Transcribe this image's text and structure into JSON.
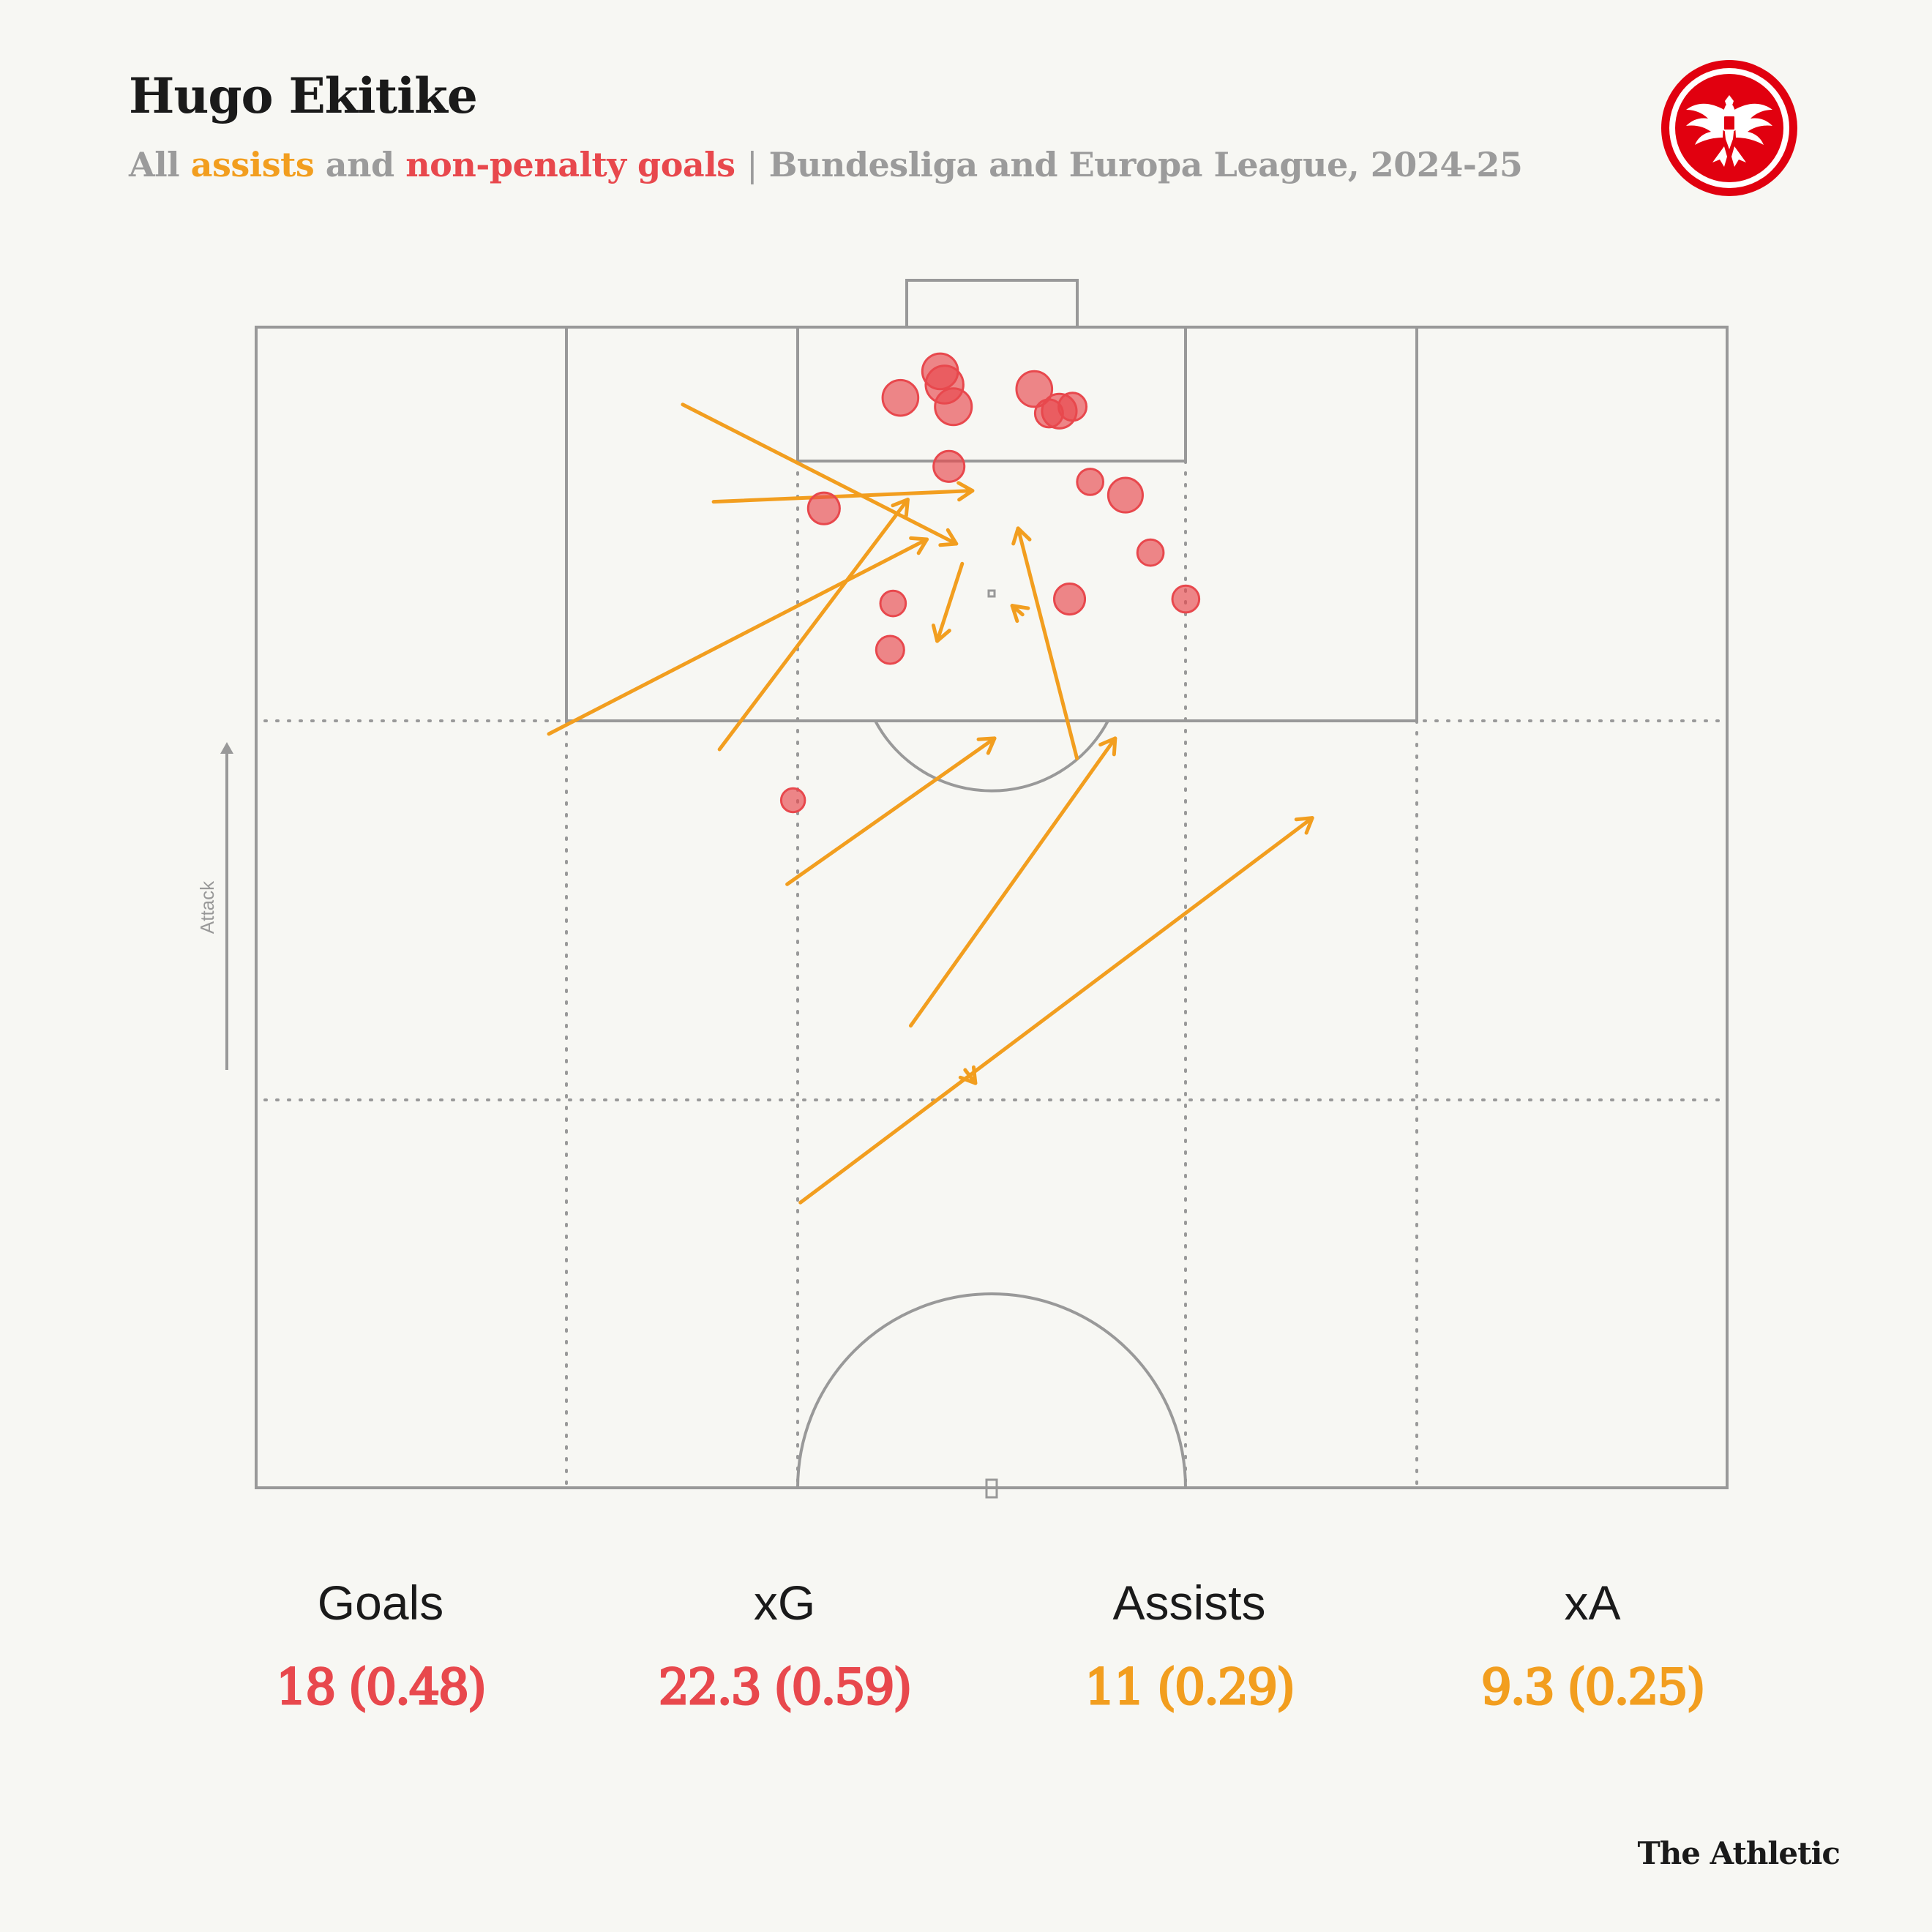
{
  "header": {
    "title": "Hugo Ekitike",
    "subtitle_parts": {
      "all": "All",
      "assists": "assists",
      "and": "and",
      "goals": "non-penalty goals",
      "separator": "|",
      "competition": "Bundesliga and Europa League, 2024-25"
    }
  },
  "colors": {
    "assist": "#f29e1f",
    "goal": "#e8484d",
    "line": "#999999",
    "background": "#f7f7f3",
    "badge_red": "#e1000f"
  },
  "badge": {
    "icon": "eintracht-frankfurt-eagle-crest-icon"
  },
  "pitch": {
    "direction_label": "Attack",
    "direction_icon": "arrow-up-icon"
  },
  "chart_data": {
    "type": "scatter",
    "description_units": "pitch coordinates: x = 0..100 across pitch width (left to right), y = metres from goal line toward halfway line",
    "pitch": {
      "width_m": 68,
      "length_shown_m": 52.5
    },
    "shots_goals": [
      {
        "x": 46.5,
        "y": 2.0,
        "xg_size": 0.55
      },
      {
        "x": 46.8,
        "y": 2.6,
        "xg_size": 0.65
      },
      {
        "x": 43.8,
        "y": 3.2,
        "xg_size": 0.55
      },
      {
        "x": 47.4,
        "y": 3.6,
        "xg_size": 0.6
      },
      {
        "x": 52.9,
        "y": 2.8,
        "xg_size": 0.55
      },
      {
        "x": 54.6,
        "y": 3.8,
        "xg_size": 0.5
      },
      {
        "x": 55.5,
        "y": 3.6,
        "xg_size": 0.25
      },
      {
        "x": 53.9,
        "y": 3.9,
        "xg_size": 0.25
      },
      {
        "x": 47.1,
        "y": 6.3,
        "xg_size": 0.35
      },
      {
        "x": 56.7,
        "y": 7.0,
        "xg_size": 0.2
      },
      {
        "x": 59.1,
        "y": 7.6,
        "xg_size": 0.5
      },
      {
        "x": 38.6,
        "y": 8.2,
        "xg_size": 0.38
      },
      {
        "x": 60.8,
        "y": 10.2,
        "xg_size": 0.2
      },
      {
        "x": 43.3,
        "y": 12.5,
        "xg_size": 0.18
      },
      {
        "x": 55.3,
        "y": 12.3,
        "xg_size": 0.35
      },
      {
        "x": 63.2,
        "y": 12.3,
        "xg_size": 0.22
      },
      {
        "x": 43.1,
        "y": 14.6,
        "xg_size": 0.25
      },
      {
        "x": 36.5,
        "y": 21.4,
        "xg_size": 0.14
      }
    ],
    "assists": [
      {
        "x1": 29.0,
        "y1": 3.5,
        "x2": 47.6,
        "y2": 9.8
      },
      {
        "x1": 31.1,
        "y1": 7.9,
        "x2": 48.7,
        "y2": 7.4
      },
      {
        "x1": 19.9,
        "y1": 18.4,
        "x2": 45.6,
        "y2": 9.6
      },
      {
        "x1": 31.5,
        "y1": 19.1,
        "x2": 44.3,
        "y2": 7.8
      },
      {
        "x1": 48.0,
        "y1": 10.7,
        "x2": 46.3,
        "y2": 14.2
      },
      {
        "x1": 52.1,
        "y1": 13.0,
        "x2": 51.4,
        "y2": 12.6
      },
      {
        "x1": 55.8,
        "y1": 19.5,
        "x2": 51.8,
        "y2": 9.1
      },
      {
        "x1": 36.1,
        "y1": 25.2,
        "x2": 50.2,
        "y2": 18.6
      },
      {
        "x1": 44.5,
        "y1": 31.6,
        "x2": 58.4,
        "y2": 18.6
      },
      {
        "x1": 37.0,
        "y1": 39.6,
        "x2": 71.8,
        "y2": 22.2
      },
      {
        "x1": 48.2,
        "y1": 33.6,
        "x2": 48.9,
        "y2": 34.2
      }
    ]
  },
  "stats": [
    {
      "label": "Goals",
      "value": "18 (0.48)",
      "color_key": "goal"
    },
    {
      "label": "xG",
      "value": "22.3 (0.59)",
      "color_key": "goal"
    },
    {
      "label": "Assists",
      "value": "11 (0.29)",
      "color_key": "assist"
    },
    {
      "label": "xA",
      "value": "9.3 (0.25)",
      "color_key": "assist"
    }
  ],
  "footer": {
    "logo_text": "The Athletic"
  }
}
